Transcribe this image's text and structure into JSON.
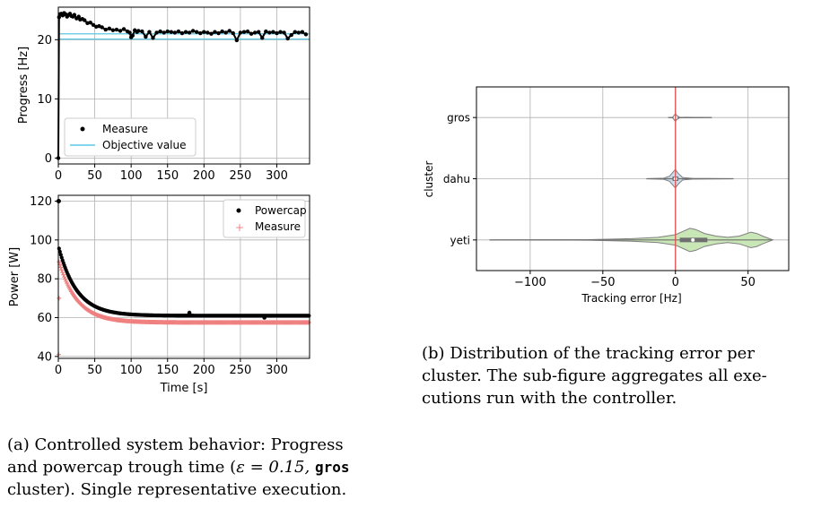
{
  "chart_data": [
    {
      "id": "progress",
      "type": "scatter",
      "xlim": [
        0,
        345
      ],
      "ylim": [
        -1,
        25.5
      ],
      "xticks": [
        0,
        50,
        100,
        150,
        200,
        250,
        300
      ],
      "yticks": [
        0,
        10,
        20
      ],
      "ylabel": "Progress [Hz]",
      "grid": true,
      "legend_position": "lower-left",
      "series": [
        {
          "name": "Measure",
          "kind": "points",
          "color": "#000000",
          "x": [
            0,
            1,
            2,
            4,
            6,
            8,
            10,
            12,
            14,
            16,
            18,
            20,
            22,
            25,
            28,
            30,
            33,
            36,
            40,
            44,
            48,
            52,
            56,
            60,
            65,
            70,
            75,
            80,
            85,
            90,
            95,
            98,
            100,
            102,
            105,
            108,
            110,
            115,
            120,
            125,
            130,
            135,
            140,
            145,
            150,
            155,
            160,
            165,
            170,
            175,
            180,
            185,
            190,
            195,
            200,
            205,
            210,
            215,
            220,
            225,
            230,
            235,
            240,
            245,
            250,
            255,
            260,
            265,
            270,
            275,
            280,
            285,
            290,
            295,
            300,
            305,
            310,
            315,
            320,
            325,
            330,
            335,
            340
          ],
          "y": [
            0,
            23.8,
            24.3,
            24.4,
            24.1,
            24.5,
            24.3,
            23.9,
            24.2,
            24.4,
            24.0,
            23.9,
            24.2,
            23.6,
            23.9,
            23.4,
            23.5,
            23.3,
            22.8,
            22.9,
            22.5,
            22.2,
            22.3,
            22.1,
            21.7,
            21.9,
            21.6,
            21.7,
            21.5,
            21.8,
            21.4,
            21.2,
            20.4,
            20.7,
            21.6,
            21.3,
            21.5,
            21.4,
            20.5,
            21.3,
            20.3,
            21.2,
            21.4,
            21.2,
            21.4,
            21.3,
            21.2,
            21.4,
            21.1,
            21.3,
            21.2,
            21.5,
            21.3,
            21.1,
            21.3,
            21.2,
            21.0,
            21.3,
            21.1,
            21.4,
            21.2,
            21.5,
            21.1,
            19.9,
            21.2,
            21.3,
            21.4,
            21.0,
            21.2,
            21.3,
            20.3,
            21.4,
            21.2,
            21.3,
            21.1,
            21.3,
            21.2,
            20.2,
            20.8,
            21.3,
            21.2,
            21.3,
            20.9
          ]
        },
        {
          "name": "Objective value",
          "kind": "line",
          "color": "#5bc8e3",
          "x": [
            0,
            345
          ],
          "y": [
            21.0,
            21.0
          ]
        },
        {
          "name": "",
          "kind": "line",
          "color": "#5bc8e3",
          "x": [
            0,
            345
          ],
          "y": [
            20.1,
            20.1
          ]
        }
      ]
    },
    {
      "id": "power",
      "type": "scatter",
      "xlim": [
        0,
        345
      ],
      "ylim": [
        39,
        123
      ],
      "xticks": [
        0,
        50,
        100,
        150,
        200,
        250,
        300
      ],
      "yticks": [
        40,
        60,
        80,
        100,
        120
      ],
      "xlabel": "Time [s]",
      "ylabel": "Power [W]",
      "grid": true,
      "legend_position": "upper-right",
      "series": [
        {
          "name": "Powercap",
          "kind": "points",
          "color": "#000000",
          "model": "decay",
          "start": 97,
          "asymptote": 61,
          "tau": 25,
          "first": 120,
          "outlier_x": [
            180,
            283
          ],
          "outlier_y": [
            62.5,
            60
          ]
        },
        {
          "name": "Measure",
          "kind": "plus",
          "color": "#f08080",
          "model": "decay",
          "start": 90,
          "asymptote": 57.5,
          "tau": 25,
          "first": 41,
          "extra_x": [
            1
          ],
          "extra_y": [
            70
          ]
        }
      ]
    },
    {
      "id": "violin",
      "type": "violin",
      "xlim": [
        -137,
        78
      ],
      "xticks": [
        -100,
        -50,
        0,
        50
      ],
      "xticklabels": [
        "−100",
        "−50",
        "0",
        "50"
      ],
      "xlabel": "Tracking error [Hz]",
      "ylabel": "cluster",
      "categories": [
        "gros",
        "dahu",
        "yeti"
      ],
      "grid": true,
      "reference_line": {
        "x": 0,
        "color": "#e05050"
      },
      "series": [
        {
          "category": "gros",
          "color": "#c9dded",
          "min": -5,
          "max": 25,
          "q1": -0.5,
          "median": 0,
          "q3": 0.5,
          "profile": [
            [
              -5,
              0
            ],
            [
              -2,
              0.2
            ],
            [
              -1,
              1.5
            ],
            [
              0,
              3
            ],
            [
              1,
              1.5
            ],
            [
              3,
              0.2
            ],
            [
              25,
              0
            ]
          ]
        },
        {
          "category": "dahu",
          "color": "#c9dded",
          "min": -20,
          "max": 40,
          "q1": -2,
          "median": 0,
          "q3": 2,
          "profile": [
            [
              -20,
              0
            ],
            [
              -8,
              0.4
            ],
            [
              -4,
              2
            ],
            [
              -1,
              6
            ],
            [
              0,
              7
            ],
            [
              2,
              4
            ],
            [
              5,
              1
            ],
            [
              12,
              0.3
            ],
            [
              40,
              0
            ]
          ]
        },
        {
          "category": "yeti",
          "color": "#c9e6b6",
          "min": -128,
          "max": 67,
          "q1": 3,
          "median": 12,
          "q3": 22,
          "profile": [
            [
              -128,
              0
            ],
            [
              -60,
              0.2
            ],
            [
              -30,
              1
            ],
            [
              -12,
              2
            ],
            [
              0,
              4
            ],
            [
              6,
              7
            ],
            [
              10,
              9
            ],
            [
              14,
              8
            ],
            [
              20,
              5
            ],
            [
              28,
              3
            ],
            [
              36,
              2
            ],
            [
              44,
              3
            ],
            [
              52,
              6
            ],
            [
              56,
              5
            ],
            [
              60,
              3
            ],
            [
              67,
              0
            ]
          ]
        }
      ]
    }
  ],
  "captions": {
    "a_line1": "(a) Controlled system behavior: Progress",
    "a_line2_pre": "and powercap trough time (",
    "a_line2_eps": "ε = 0.15, ",
    "a_line2_code": "gros",
    "a_line3": "cluster). Single representative execution.",
    "b_line1": "(b) Distribution of the tracking error per",
    "b_line2": "cluster. The sub-figure aggregates all exe-",
    "b_line3": "cutions run with the controller."
  }
}
